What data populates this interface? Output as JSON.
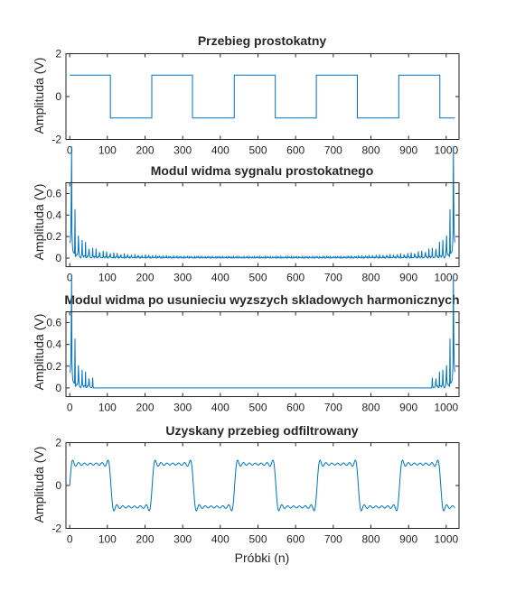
{
  "colors": {
    "line": "#0072bd",
    "axes": "#262626",
    "background": "#ffffff"
  },
  "chart_data": [
    {
      "type": "line",
      "title": "Przebieg prostokatny",
      "xlabel": "",
      "ylabel": "Amplituda (V)",
      "xlim": [
        -10,
        1034
      ],
      "ylim": [
        -2,
        2
      ],
      "xticks": [
        0,
        100,
        200,
        300,
        400,
        500,
        600,
        700,
        800,
        900,
        1000
      ],
      "yticks": [
        -2,
        0,
        2
      ],
      "signal": "square wave, period ~219 samples, starts high",
      "series": [
        {
          "x": [
            0,
            108,
            108,
            218,
            218,
            326,
            326,
            437,
            437,
            546,
            546,
            655,
            655,
            764,
            764,
            874,
            874,
            983,
            983,
            1023
          ],
          "y": [
            1,
            1,
            -1,
            -1,
            1,
            1,
            -1,
            -1,
            1,
            1,
            -1,
            -1,
            1,
            1,
            -1,
            -1,
            1,
            1,
            -1,
            -1
          ]
        }
      ]
    },
    {
      "type": "line",
      "title": "Modul widma sygnalu prostokatnego",
      "xlabel": "",
      "ylabel": "Amplituda (V)",
      "xlim": [
        -10,
        1034
      ],
      "ylim": [
        -0.08,
        0.7
      ],
      "xticks": [
        0,
        100,
        200,
        300,
        400,
        500,
        600,
        700,
        800,
        900,
        1000
      ],
      "yticks": [
        0,
        0.2,
        0.4,
        0.6
      ],
      "signal": "magnitude spectrum of square wave, odd harmonics every ~9.4 bins, mirrored",
      "peak_value": 0.53,
      "harmonics_kept": "all"
    },
    {
      "type": "line",
      "title": "Modul widma po usunieciu wyzszych skladowych harmonicznych",
      "xlabel": "",
      "ylabel": "Amplituda (V)",
      "xlim": [
        -10,
        1034
      ],
      "ylim": [
        -0.08,
        0.7
      ],
      "xticks": [
        0,
        100,
        200,
        300,
        400,
        500,
        600,
        700,
        800,
        900,
        1000
      ],
      "yticks": [
        0,
        0.2,
        0.4,
        0.6
      ],
      "signal": "same spectrum with components above bin ~62 removed (and mirror)",
      "peak_value": 0.53,
      "cutoff_bin": 62
    },
    {
      "type": "line",
      "title": "Uzyskany przebieg odfiltrowany",
      "xlabel": "Próbki (n)",
      "ylabel": "Amplituda (V)",
      "xlim": [
        -10,
        1034
      ],
      "ylim": [
        -2,
        2
      ],
      "xticks": [
        0,
        100,
        200,
        300,
        400,
        500,
        600,
        700,
        800,
        900,
        1000
      ],
      "yticks": [
        -2,
        0,
        2
      ],
      "signal": "band-limited square wave with Gibbs ringing, 7 odd harmonics",
      "harmonics": [
        1,
        3,
        5,
        7,
        9,
        11,
        13
      ]
    }
  ]
}
